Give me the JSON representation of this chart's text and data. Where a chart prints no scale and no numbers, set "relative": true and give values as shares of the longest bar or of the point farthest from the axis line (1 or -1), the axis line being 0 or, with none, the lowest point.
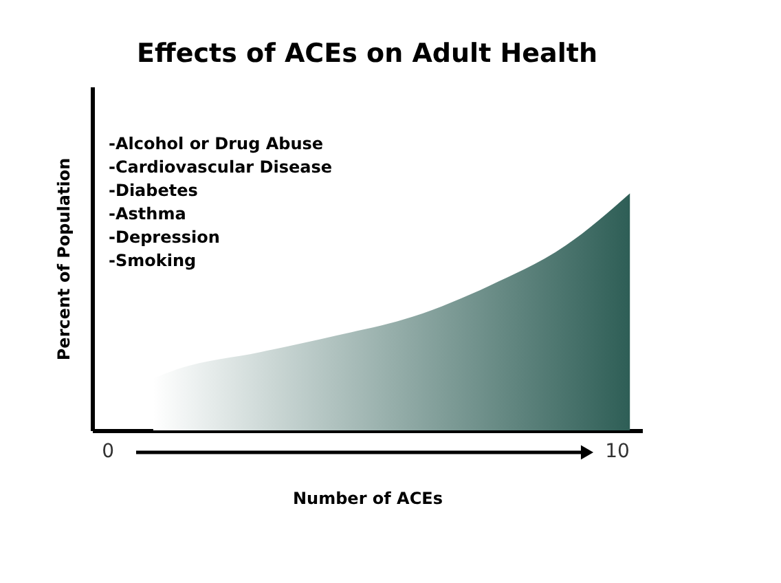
{
  "chart_data": {
    "type": "area",
    "title": "Effects of ACEs on Adult Health",
    "xlabel": "Number of ACEs",
    "ylabel": "Percent of Population",
    "x": [
      0.9,
      1.4,
      3.0,
      4.5,
      6.0,
      7.5,
      9.0,
      10.26
    ],
    "series": [
      {
        "color": "#2e5e56",
        "values": [
          0.22,
          0.26,
          0.33,
          0.4,
          0.48,
          0.61,
          0.78,
          1
        ]
      }
    ],
    "relative": true,
    "xlim": [
      -0.3,
      10.5
    ],
    "xticks": [
      0,
      10
    ],
    "grid": false,
    "annotations": [
      "-Alcohol or Drug Abuse",
      "-Cardiovascular Disease",
      "-Diabetes",
      "-Asthma",
      "-Depression",
      "-Smoking"
    ]
  }
}
